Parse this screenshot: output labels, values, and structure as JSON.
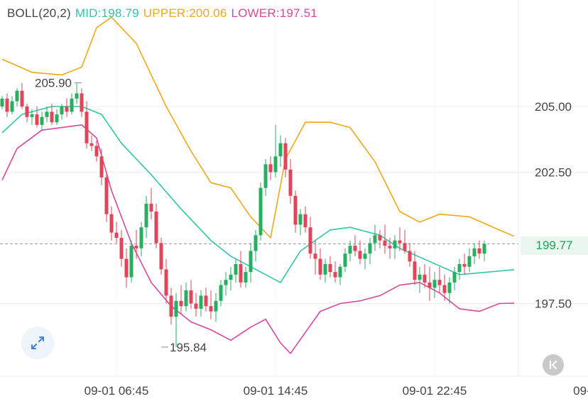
{
  "indicator": {
    "name": "BOLL(20,2)",
    "mid": "MID:198.79",
    "upper": "UPPER:200.06",
    "lower": "LOWER:197.51"
  },
  "colors": {
    "mid": "#2ec7a6",
    "upper": "#f0a818",
    "lower": "#d9479a",
    "up": "#27ae60",
    "down": "#e0455a",
    "grid": "#eeeeee",
    "text": "#444444"
  },
  "current_price": "199.77",
  "controls": {
    "expand_icon": "expand-arrows-icon",
    "reset_icon": "scroll-to-latest-icon"
  },
  "chart_data": {
    "type": "candlestick",
    "y_range": [
      195.0,
      209.0
    ],
    "y_ticks": [
      "205.00",
      "202.50",
      "197.50"
    ],
    "y_tick_values": [
      205.0,
      202.5,
      197.5
    ],
    "x_ticks": [
      "09-01 06:45",
      "09-01 14:45",
      "09-01 22:45",
      "09-02 0"
    ],
    "x_tick_index": [
      23,
      55,
      87,
      119
    ],
    "annotations": [
      {
        "text": "205.90",
        "index": 16,
        "value": 205.9
      },
      {
        "text": "195.84",
        "index": 32,
        "value": 195.84
      }
    ],
    "candles": [
      [
        205.0,
        205.4,
        204.9,
        205.3
      ],
      [
        205.3,
        205.5,
        204.6,
        204.8
      ],
      [
        204.8,
        205.4,
        204.7,
        205.2
      ],
      [
        205.2,
        205.7,
        205.0,
        205.6
      ],
      [
        205.6,
        205.9,
        204.9,
        205.0
      ],
      [
        205.0,
        205.1,
        204.4,
        204.6
      ],
      [
        204.6,
        204.9,
        204.3,
        204.7
      ],
      [
        204.7,
        205.0,
        204.2,
        204.3
      ],
      [
        204.3,
        204.8,
        204.1,
        204.6
      ],
      [
        204.6,
        205.0,
        204.4,
        204.8
      ],
      [
        204.8,
        205.1,
        204.3,
        204.4
      ],
      [
        204.4,
        204.9,
        204.3,
        204.7
      ],
      [
        204.7,
        205.1,
        204.5,
        205.0
      ],
      [
        205.0,
        205.3,
        204.6,
        204.8
      ],
      [
        204.8,
        205.5,
        204.7,
        205.3
      ],
      [
        205.3,
        205.9,
        205.1,
        205.5
      ],
      [
        205.5,
        205.7,
        204.6,
        204.8
      ],
      [
        204.8,
        205.2,
        203.4,
        203.6
      ],
      [
        203.6,
        203.9,
        203.3,
        203.5
      ],
      [
        203.5,
        203.7,
        202.9,
        203.1
      ],
      [
        203.1,
        203.4,
        202.0,
        202.3
      ],
      [
        202.3,
        202.5,
        200.6,
        200.9
      ],
      [
        200.9,
        201.2,
        199.9,
        200.2
      ],
      [
        200.2,
        200.6,
        199.8,
        200.0
      ],
      [
        200.0,
        200.3,
        198.9,
        199.2
      ],
      [
        199.2,
        199.6,
        198.1,
        198.5
      ],
      [
        198.5,
        199.9,
        198.3,
        199.7
      ],
      [
        199.7,
        200.3,
        199.2,
        199.6
      ],
      [
        199.6,
        200.6,
        199.3,
        200.4
      ],
      [
        200.4,
        201.6,
        200.0,
        201.3
      ],
      [
        201.3,
        201.9,
        200.7,
        201.0
      ],
      [
        201.0,
        201.3,
        199.6,
        199.8
      ],
      [
        199.8,
        200.0,
        198.6,
        198.8
      ],
      [
        198.8,
        199.2,
        197.5,
        197.8
      ],
      [
        197.8,
        198.1,
        196.7,
        197.0
      ],
      [
        197.0,
        197.9,
        195.84,
        197.6
      ],
      [
        197.6,
        198.2,
        197.1,
        197.4
      ],
      [
        197.4,
        198.3,
        197.2,
        198.0
      ],
      [
        198.0,
        198.4,
        197.3,
        197.5
      ],
      [
        197.5,
        197.9,
        197.0,
        197.3
      ],
      [
        197.3,
        198.0,
        197.0,
        197.8
      ],
      [
        197.8,
        198.1,
        197.2,
        197.4
      ],
      [
        197.4,
        198.0,
        196.9,
        197.2
      ],
      [
        197.2,
        197.9,
        196.8,
        197.6
      ],
      [
        197.6,
        198.4,
        197.4,
        198.2
      ],
      [
        198.2,
        198.7,
        197.8,
        198.4
      ],
      [
        198.4,
        198.9,
        198.0,
        198.6
      ],
      [
        198.6,
        199.2,
        198.3,
        199.0
      ],
      [
        199.0,
        199.5,
        198.1,
        198.3
      ],
      [
        198.3,
        198.9,
        198.1,
        198.7
      ],
      [
        198.7,
        199.8,
        198.3,
        199.5
      ],
      [
        199.5,
        200.3,
        199.1,
        200.1
      ],
      [
        200.1,
        202.1,
        199.9,
        201.9
      ],
      [
        201.9,
        203.0,
        201.6,
        202.8
      ],
      [
        202.8,
        203.1,
        202.2,
        202.5
      ],
      [
        202.5,
        204.3,
        202.3,
        203.1
      ],
      [
        203.1,
        203.9,
        202.7,
        203.6
      ],
      [
        203.6,
        203.8,
        202.3,
        202.6
      ],
      [
        202.6,
        203.0,
        201.3,
        201.6
      ],
      [
        201.6,
        201.8,
        200.2,
        200.5
      ],
      [
        200.5,
        201.1,
        200.1,
        200.9
      ],
      [
        200.9,
        201.2,
        200.2,
        200.4
      ],
      [
        200.4,
        200.8,
        199.2,
        199.4
      ],
      [
        199.4,
        199.9,
        198.6,
        199.2
      ],
      [
        199.2,
        199.6,
        198.4,
        198.6
      ],
      [
        198.6,
        199.2,
        198.3,
        199.0
      ],
      [
        199.0,
        199.3,
        198.5,
        198.7
      ],
      [
        198.7,
        199.1,
        198.3,
        198.5
      ],
      [
        198.5,
        199.0,
        198.2,
        198.9
      ],
      [
        198.9,
        199.6,
        198.7,
        199.4
      ],
      [
        199.4,
        199.9,
        199.1,
        199.7
      ],
      [
        199.7,
        200.1,
        199.3,
        199.5
      ],
      [
        199.5,
        199.9,
        199.0,
        199.2
      ],
      [
        199.2,
        199.6,
        198.8,
        199.4
      ],
      [
        199.4,
        200.0,
        199.0,
        199.8
      ],
      [
        199.8,
        200.5,
        199.5,
        200.1
      ],
      [
        200.1,
        200.3,
        199.6,
        199.9
      ],
      [
        199.9,
        200.5,
        199.4,
        199.7
      ],
      [
        199.7,
        200.0,
        199.2,
        199.6
      ],
      [
        199.6,
        200.1,
        199.2,
        199.9
      ],
      [
        199.9,
        200.4,
        199.5,
        199.8
      ],
      [
        199.8,
        200.3,
        199.4,
        199.5
      ],
      [
        199.5,
        199.8,
        198.9,
        199.1
      ],
      [
        199.1,
        199.5,
        198.2,
        198.4
      ],
      [
        198.4,
        198.9,
        197.9,
        198.6
      ],
      [
        198.6,
        199.0,
        198.1,
        198.3
      ],
      [
        198.3,
        198.9,
        197.6,
        198.1
      ],
      [
        198.1,
        198.7,
        197.7,
        198.4
      ],
      [
        198.4,
        198.9,
        197.9,
        198.2
      ],
      [
        198.2,
        198.6,
        197.6,
        197.9
      ],
      [
        197.9,
        198.5,
        197.5,
        198.3
      ],
      [
        198.3,
        198.9,
        198.0,
        198.7
      ],
      [
        198.7,
        199.2,
        198.4,
        199.0
      ],
      [
        199.0,
        199.4,
        198.6,
        198.9
      ],
      [
        198.9,
        199.6,
        198.7,
        199.3
      ],
      [
        199.3,
        199.8,
        199.0,
        199.6
      ],
      [
        199.6,
        199.9,
        199.2,
        199.4
      ],
      [
        199.4,
        199.9,
        199.1,
        199.77
      ]
    ],
    "upper": [
      [
        0,
        206.8
      ],
      [
        6,
        206.3
      ],
      [
        12,
        206.2
      ],
      [
        16,
        206.5
      ],
      [
        19,
        208.0
      ],
      [
        22,
        208.4
      ],
      [
        27,
        207.4
      ],
      [
        33,
        205.0
      ],
      [
        38,
        203.3
      ],
      [
        42,
        202.1
      ],
      [
        46,
        201.9
      ],
      [
        50,
        200.8
      ],
      [
        54,
        200.0
      ],
      [
        57,
        203.0
      ],
      [
        61,
        204.4
      ],
      [
        66,
        204.4
      ],
      [
        70,
        204.2
      ],
      [
        75,
        202.9
      ],
      [
        80,
        201.0
      ],
      [
        84,
        200.6
      ],
      [
        88,
        200.9
      ],
      [
        94,
        200.8
      ],
      [
        100,
        200.3
      ],
      [
        103,
        200.06
      ]
    ],
    "mid": [
      [
        0,
        204.0
      ],
      [
        4,
        204.7
      ],
      [
        10,
        205.0
      ],
      [
        16,
        205.0
      ],
      [
        20,
        204.7
      ],
      [
        24,
        203.6
      ],
      [
        30,
        202.4
      ],
      [
        36,
        201.1
      ],
      [
        42,
        199.9
      ],
      [
        46,
        199.3
      ],
      [
        52,
        198.7
      ],
      [
        56,
        198.3
      ],
      [
        60,
        199.5
      ],
      [
        66,
        200.3
      ],
      [
        70,
        200.4
      ],
      [
        76,
        200.1
      ],
      [
        80,
        199.6
      ],
      [
        86,
        199.1
      ],
      [
        92,
        198.6
      ],
      [
        98,
        198.7
      ],
      [
        103,
        198.79
      ]
    ],
    "lower": [
      [
        0,
        202.2
      ],
      [
        3,
        203.4
      ],
      [
        8,
        204.1
      ],
      [
        16,
        204.3
      ],
      [
        19,
        203.8
      ],
      [
        22,
        201.8
      ],
      [
        26,
        199.8
      ],
      [
        30,
        198.3
      ],
      [
        34,
        197.4
      ],
      [
        38,
        196.8
      ],
      [
        42,
        196.5
      ],
      [
        46,
        196.1
      ],
      [
        50,
        196.6
      ],
      [
        53,
        196.9
      ],
      [
        56,
        196.0
      ],
      [
        58,
        195.6
      ],
      [
        61,
        196.4
      ],
      [
        64,
        197.2
      ],
      [
        68,
        197.5
      ],
      [
        72,
        197.6
      ],
      [
        76,
        197.8
      ],
      [
        80,
        198.2
      ],
      [
        84,
        198.3
      ],
      [
        88,
        197.9
      ],
      [
        92,
        197.3
      ],
      [
        96,
        197.2
      ],
      [
        100,
        197.5
      ],
      [
        103,
        197.51
      ]
    ]
  }
}
